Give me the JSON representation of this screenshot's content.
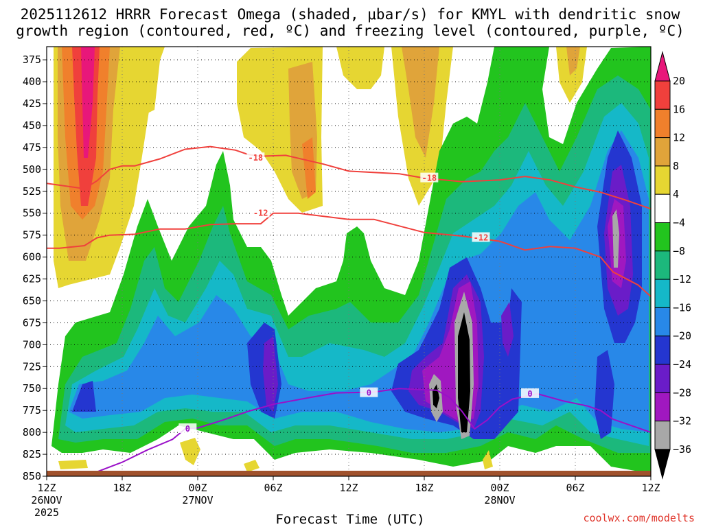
{
  "chart_data": {
    "type": "heatmap",
    "title": "2025112612 HRRR Forecast Omega (shaded, μbar/s) for KMYL with dendritic snow",
    "subtitle": "growth region (contoured, red, ºC) and freezing level (contoured, purple, ºC)",
    "xlabel": "Forecast Time (UTC)",
    "ylabel": "",
    "credit": "coolwx.com/modelts",
    "credit_color": "#e0352b",
    "y_unit": "hPa",
    "ylim": [
      850,
      360
    ],
    "y_ticks": [
      375,
      400,
      425,
      450,
      475,
      500,
      525,
      550,
      575,
      600,
      625,
      650,
      675,
      700,
      725,
      750,
      775,
      800,
      825,
      850
    ],
    "y_tick_labels": [
      "375",
      "400",
      "425",
      "450",
      "475",
      "500",
      "525",
      "550",
      "575",
      "600",
      "625",
      "650",
      "675",
      "700",
      "725",
      "750",
      "775",
      "800",
      "825",
      "850"
    ],
    "x_unit": "hours since 2025-11-26 12Z",
    "xlim": [
      0,
      48
    ],
    "x_ticks": [
      0,
      6,
      12,
      18,
      24,
      30,
      36,
      42,
      48
    ],
    "x_tick_labels": [
      "12Z",
      "18Z",
      "00Z",
      "06Z",
      "12Z",
      "18Z",
      "00Z",
      "06Z",
      "12Z"
    ],
    "date_labels": [
      {
        "x": 0,
        "text": "26NOV"
      },
      {
        "x": 12,
        "text": "27NOV"
      },
      {
        "x": 36,
        "text": "28NOV"
      }
    ],
    "year_label": {
      "x": 0,
      "text": "2025"
    },
    "colorbar": {
      "bins": [
        {
          "lo": 20,
          "hi": null,
          "color": "#e8177a"
        },
        {
          "lo": 16,
          "hi": 20,
          "color": "#f0403c"
        },
        {
          "lo": 12,
          "hi": 16,
          "color": "#f0802c"
        },
        {
          "lo": 8,
          "hi": 12,
          "color": "#e0a43a"
        },
        {
          "lo": 4,
          "hi": 8,
          "color": "#e6d632"
        },
        {
          "lo": -4,
          "hi": 4,
          "color": "#ffffff"
        },
        {
          "lo": -8,
          "hi": -4,
          "color": "#22c41e"
        },
        {
          "lo": -12,
          "hi": -8,
          "color": "#1cb87c"
        },
        {
          "lo": -16,
          "hi": -12,
          "color": "#15b8c8"
        },
        {
          "lo": -20,
          "hi": -16,
          "color": "#2888e8"
        },
        {
          "lo": -24,
          "hi": -20,
          "color": "#2436d0"
        },
        {
          "lo": -28,
          "hi": -24,
          "color": "#6a1cc8"
        },
        {
          "lo": -32,
          "hi": -28,
          "color": "#a018c0"
        },
        {
          "lo": -36,
          "hi": -32,
          "color": "#a8a8a8"
        },
        {
          "lo": null,
          "hi": -36,
          "color": "#000000"
        }
      ],
      "labels": [
        "20",
        "16",
        "12",
        "8",
        "4",
        "−4",
        "−8",
        "−12",
        "−16",
        "−20",
        "−24",
        "−28",
        "−32",
        "−36"
      ]
    },
    "contour_colors": {
      "dendritic": "#f0403c",
      "freezing": "#9a10c8",
      "ground": "#a0522d"
    },
    "contours": [
      {
        "name": "minus-12-isotherm",
        "label": "-12",
        "kind": "dendritic",
        "points": [
          [
            0,
            590
          ],
          [
            1,
            590
          ],
          [
            3,
            587
          ],
          [
            4,
            578
          ],
          [
            5,
            575
          ],
          [
            7,
            574
          ],
          [
            9,
            568
          ],
          [
            11,
            568
          ],
          [
            13,
            563
          ],
          [
            15,
            562
          ],
          [
            17,
            562
          ],
          [
            18,
            550
          ],
          [
            20,
            550
          ],
          [
            24,
            557
          ],
          [
            26,
            557
          ],
          [
            30,
            572
          ],
          [
            33,
            576
          ],
          [
            36,
            582
          ],
          [
            38,
            592
          ],
          [
            40,
            588
          ],
          [
            42,
            590
          ],
          [
            44,
            600
          ],
          [
            45,
            617
          ],
          [
            47,
            632
          ],
          [
            48,
            645
          ]
        ],
        "label_positions": [
          [
            17,
            550
          ],
          [
            34.5,
            578
          ]
        ]
      },
      {
        "name": "minus-18-isotherm",
        "label": "-18",
        "kind": "dendritic",
        "points": [
          [
            0,
            516
          ],
          [
            3,
            522
          ],
          [
            4,
            513
          ],
          [
            5,
            500
          ],
          [
            6,
            496
          ],
          [
            7,
            496
          ],
          [
            9,
            488
          ],
          [
            11,
            477
          ],
          [
            13,
            474
          ],
          [
            15,
            478
          ],
          [
            16,
            483
          ],
          [
            17,
            485
          ],
          [
            19,
            484
          ],
          [
            22,
            494
          ],
          [
            24,
            502
          ],
          [
            28,
            505
          ],
          [
            30,
            510
          ],
          [
            33,
            514
          ],
          [
            36,
            512
          ],
          [
            38,
            508
          ],
          [
            40,
            512
          ],
          [
            42,
            520
          ],
          [
            44,
            526
          ],
          [
            46,
            535
          ],
          [
            48,
            545
          ]
        ],
        "label_positions": [
          [
            16.6,
            487
          ],
          [
            30.4,
            510
          ]
        ]
      },
      {
        "name": "freezing-level",
        "label": "0",
        "kind": "freezing",
        "points": [
          [
            3,
            850
          ],
          [
            4,
            845
          ],
          [
            6,
            834
          ],
          [
            8,
            820
          ],
          [
            10,
            808
          ],
          [
            11,
            796
          ],
          [
            12,
            795
          ],
          [
            14,
            786
          ],
          [
            16,
            776
          ],
          [
            17,
            772
          ],
          [
            18,
            768
          ],
          [
            21,
            760
          ],
          [
            23,
            755
          ],
          [
            26,
            754
          ],
          [
            28,
            750
          ],
          [
            31,
            752
          ],
          [
            32,
            760
          ],
          [
            33,
            776
          ],
          [
            34,
            796
          ],
          [
            35,
            786
          ],
          [
            36,
            771
          ],
          [
            37,
            762
          ],
          [
            38,
            759
          ],
          [
            39,
            756
          ],
          [
            41,
            764
          ],
          [
            43,
            770
          ],
          [
            44,
            775
          ],
          [
            45,
            785
          ],
          [
            48,
            800
          ]
        ],
        "label_positions": [
          [
            11.2,
            796
          ],
          [
            25.6,
            755
          ],
          [
            38.4,
            756
          ]
        ]
      }
    ],
    "omega_features": [
      {
        "name": "ascent-core-36h",
        "value": -38,
        "x": 33.8,
        "p": 705
      },
      {
        "name": "ascent-core-33h",
        "value": -33,
        "x": 31.6,
        "p": 735
      },
      {
        "name": "ascent-core-45h",
        "value": -30,
        "x": 45.5,
        "p": 545
      },
      {
        "name": "subsidence-max-0h",
        "value": 21,
        "x": 3.3,
        "p": 420
      },
      {
        "name": "ascent-band-18h",
        "value": -27,
        "x": 17.5,
        "p": 695
      },
      {
        "name": "ascent-band-2h",
        "value": -22,
        "x": 2.8,
        "p": 725
      }
    ]
  }
}
